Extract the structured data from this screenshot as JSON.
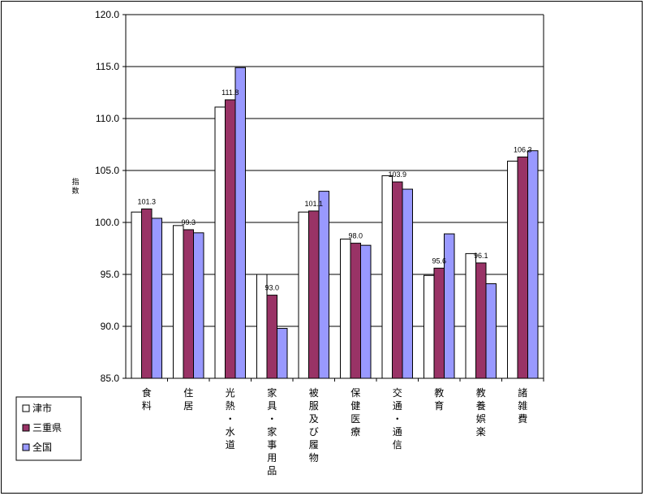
{
  "chart_data": {
    "type": "bar",
    "ylabel": "指数",
    "ylim": [
      85.0,
      120.0
    ],
    "ytick_step": 5,
    "y_ticks": [
      "85.0",
      "90.0",
      "95.0",
      "100.0",
      "105.0",
      "110.0",
      "115.0",
      "120.0"
    ],
    "grid": true,
    "legend_position": "bottom-left",
    "categories": [
      "食料",
      "住居",
      "光熱・水道",
      "家具・家事用品",
      "被服及び履物",
      "保健医療",
      "交通・通信",
      "教育",
      "教養娯楽",
      "諸雑費"
    ],
    "series": [
      {
        "name": "津市",
        "color": "#ffffff",
        "values": [
          101.0,
          99.7,
          111.1,
          95.0,
          101.0,
          98.4,
          104.5,
          94.9,
          97.0,
          105.9
        ]
      },
      {
        "name": "三重県",
        "color": "#993366",
        "values": [
          101.3,
          99.3,
          111.8,
          93.0,
          101.1,
          98.0,
          103.9,
          95.6,
          96.1,
          106.3
        ]
      },
      {
        "name": "全国",
        "color": "#9999ff",
        "values": [
          100.4,
          99.0,
          114.9,
          89.8,
          103.0,
          97.8,
          103.2,
          98.9,
          94.1,
          106.9
        ]
      }
    ],
    "data_labels": [
      {
        "category_index": 0,
        "series_index": 1,
        "text": "101.3"
      },
      {
        "category_index": 1,
        "series_index": 1,
        "text": "99.3"
      },
      {
        "category_index": 2,
        "series_index": 1,
        "text": "111.8"
      },
      {
        "category_index": 3,
        "series_index": 1,
        "text": "93.0"
      },
      {
        "category_index": 4,
        "series_index": 1,
        "text": "101.1"
      },
      {
        "category_index": 5,
        "series_index": 1,
        "text": "98.0"
      },
      {
        "category_index": 6,
        "series_index": 1,
        "text": "103.9"
      },
      {
        "category_index": 7,
        "series_index": 1,
        "text": "95.6"
      },
      {
        "category_index": 8,
        "series_index": 1,
        "text": "96.1"
      },
      {
        "category_index": 9,
        "series_index": 1,
        "text": "106.3"
      }
    ]
  }
}
